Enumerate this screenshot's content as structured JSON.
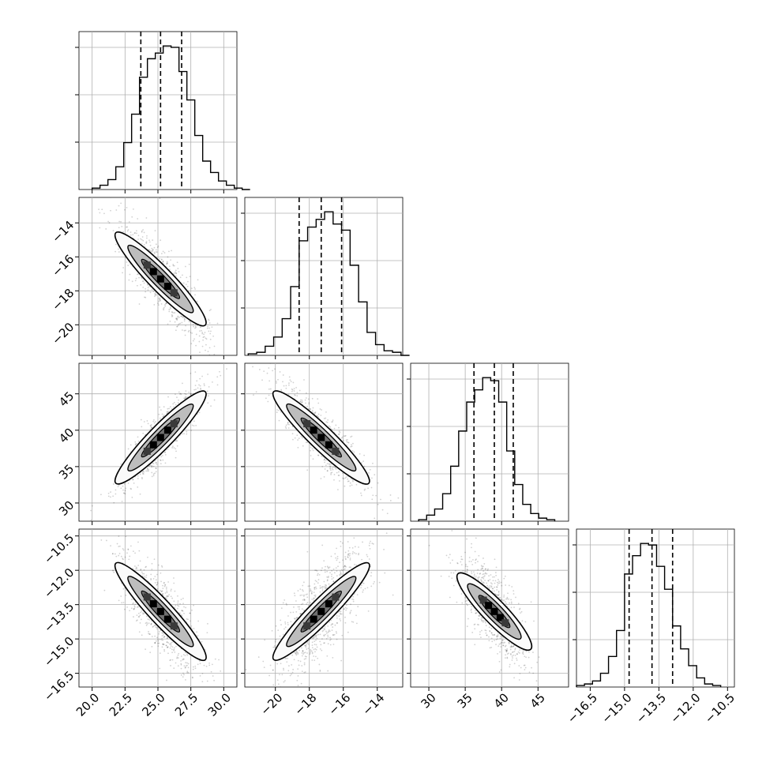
{
  "chart_data": {
    "type": "corner",
    "parameters": [
      {
        "range": [
          19.0,
          31.0
        ],
        "ticks": [
          "20.0",
          "22.5",
          "25.0",
          "27.5",
          "30.0"
        ],
        "tick_values": [
          20.0,
          22.5,
          25.0,
          27.5,
          30.0
        ],
        "quantiles": [
          23.7,
          25.2,
          26.8
        ],
        "hist": {
          "start": 20.0,
          "width": 0.6,
          "counts": [
            1,
            3,
            7,
            16,
            33,
            53,
            79,
            92,
            96,
            101,
            100,
            83,
            63,
            38,
            20,
            12,
            6,
            3,
            1,
            0
          ]
        }
      },
      {
        "range": [
          -21.8,
          -12.5
        ],
        "ticks": [
          "-20",
          "-18",
          "-16",
          "-14"
        ],
        "tick_values": [
          -20,
          -18,
          -16,
          -14
        ],
        "quantiles": [
          -18.6,
          -17.3,
          -16.1
        ],
        "hist": {
          "start": -21.6,
          "width": 0.5,
          "counts": [
            1,
            2,
            6,
            12,
            24,
            45,
            75,
            84,
            89,
            94,
            86,
            82,
            59,
            35,
            15,
            7,
            3,
            2,
            0
          ]
        }
      },
      {
        "range": [
          27.5,
          49.2
        ],
        "ticks": [
          "30",
          "35",
          "40",
          "45"
        ],
        "tick_values": [
          30,
          35,
          40,
          45
        ],
        "quantiles": [
          36.2,
          39.0,
          41.6
        ],
        "hist": {
          "start": 28.6,
          "width": 1.1,
          "counts": [
            1,
            4,
            8,
            18,
            36,
            59,
            78,
            86,
            94,
            92,
            78,
            46,
            24,
            11,
            5,
            2,
            1
          ]
        }
      },
      {
        "range": [
          -17.1,
          -10.2
        ],
        "ticks": [
          "-16.5",
          "-15.0",
          "-13.5",
          "-12.0",
          "-10.5"
        ],
        "tick_values": [
          -16.5,
          -15.0,
          -13.5,
          -12.0,
          -10.5
        ],
        "quantiles": [
          -14.8,
          -13.8,
          -12.9
        ],
        "hist": {
          "start": -17.1,
          "width": 0.35,
          "counts": [
            1,
            2,
            4,
            9,
            20,
            37,
            74,
            86,
            94,
            93,
            79,
            64,
            40,
            25,
            14,
            6,
            2,
            1
          ]
        }
      }
    ],
    "pairs": [
      {
        "row": 1,
        "col": 0,
        "center": [
          25.2,
          -17.3
        ],
        "slope": -0.8,
        "major": 3.4,
        "minor": 0.5
      },
      {
        "row": 2,
        "col": 0,
        "center": [
          25.2,
          39.0
        ],
        "slope": 1.85,
        "major": 3.4,
        "minor": 0.6
      },
      {
        "row": 2,
        "col": 1,
        "center": [
          -17.3,
          39.0
        ],
        "slope": -2.25,
        "major": 2.8,
        "minor": 0.55
      },
      {
        "row": 3,
        "col": 0,
        "center": [
          25.2,
          -13.8
        ],
        "slope": -0.62,
        "major": 3.4,
        "minor": 0.5
      },
      {
        "row": 3,
        "col": 1,
        "center": [
          -17.3,
          -13.8
        ],
        "slope": 0.75,
        "major": 2.8,
        "minor": 0.6
      },
      {
        "row": 3,
        "col": 2,
        "center": [
          39.0,
          -13.8
        ],
        "slope": -0.33,
        "major": 5.0,
        "minor": 0.55
      }
    ],
    "grid": true,
    "quantile_lines": "dashed"
  }
}
